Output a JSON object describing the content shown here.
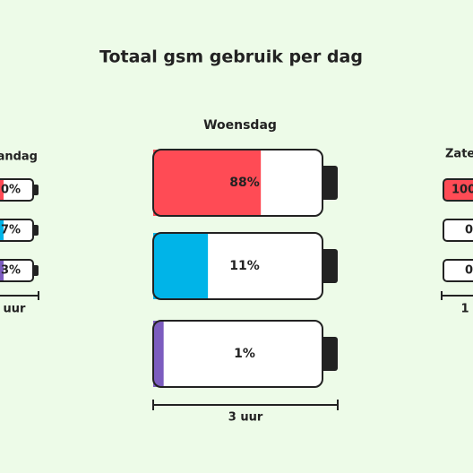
{
  "header": {
    "title": "Totaal gsm gebruik per dag"
  },
  "center": {
    "title": "Woensdag",
    "scale_label": "3 uur",
    "scale_max": 3,
    "batteries": [
      {
        "label": "88%",
        "hours": 1.75,
        "color": "#ff4b55"
      },
      {
        "label": "11%",
        "hours": 0.89,
        "color": "#00b4e8"
      },
      {
        "label": "1%",
        "hours": 0.17,
        "color": "#7c5cbf"
      }
    ]
  },
  "left": {
    "title": "andag",
    "scale_label": "uur",
    "batteries": [
      {
        "label": "0%",
        "color": "#ff4b55"
      },
      {
        "label": "7%",
        "color": "#00b4e8"
      },
      {
        "label": "3%",
        "color": "#7c5cbf"
      }
    ]
  },
  "right": {
    "title": "Zate",
    "scale_label": "1",
    "batteries": [
      {
        "label": "100",
        "color": "#ff4b55"
      },
      {
        "label": "0",
        "color": "#00b4e8"
      },
      {
        "label": "0",
        "color": "#7c5cbf"
      }
    ]
  }
}
